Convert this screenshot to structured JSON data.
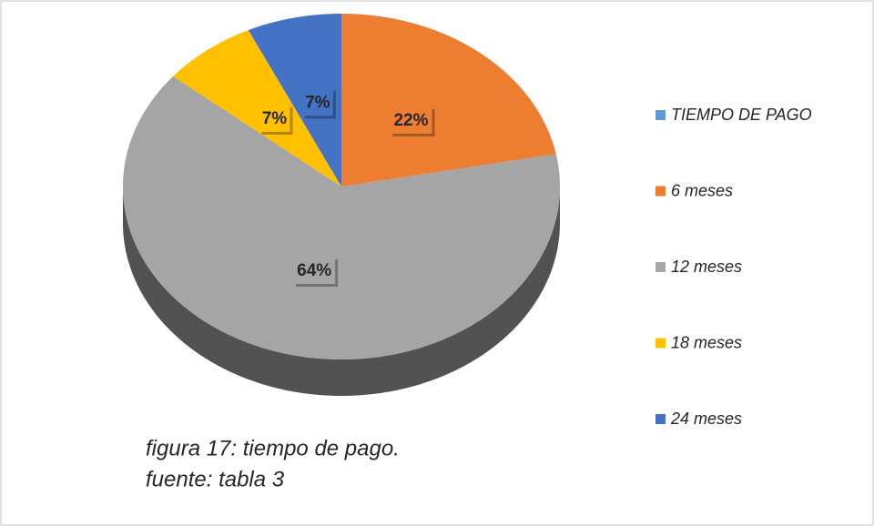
{
  "chart_data": {
    "type": "pie3d",
    "categories": [
      "TIEMPO DE PAGO",
      "6 meses",
      "12 meses",
      "18 meses",
      "24 meses"
    ],
    "values": [
      0,
      22,
      64,
      7,
      7
    ],
    "value_labels": [
      null,
      "22%",
      "64%",
      "7%",
      "7%"
    ],
    "colors": [
      "#5b9bd5",
      "#ed7d31",
      "#a5a5a5",
      "#ffc000",
      "#4472c4"
    ],
    "legend": "right",
    "annotations": [
      "figura 17: tiempo de pago.",
      "fuente: tabla 3"
    ]
  }
}
